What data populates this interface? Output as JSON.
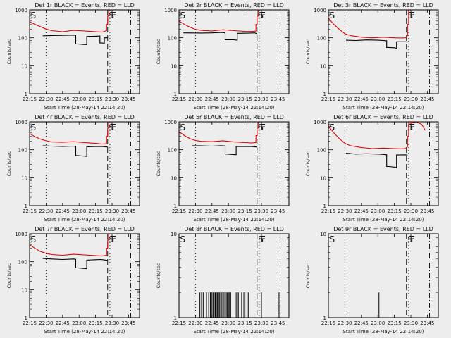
{
  "chart_data": {
    "type": "line",
    "layout": "3x3 grid",
    "x_tick_labels": [
      "22:15",
      "22:30",
      "22:45",
      "23:00",
      "23:15",
      "23:30",
      "23:45"
    ],
    "x_tick_values_min": [
      0,
      15,
      30,
      45,
      60,
      75,
      90
    ],
    "xlim_min": [
      0,
      100
    ],
    "xlabel": "Start Time (28-May-14 22:14:20)",
    "ylabel": "Counts/sec",
    "yscale": "log",
    "colors": {
      "events": "#000000",
      "lld": "#dd0000",
      "background": "#ededed"
    },
    "markers": [
      {
        "label": "S",
        "x": 0,
        "style": "long-dash"
      },
      {
        "label": "",
        "x": 15,
        "style": "dotted"
      },
      {
        "label": "S",
        "x": 71,
        "style": "long-dash"
      },
      {
        "label": "E",
        "x": 73,
        "style": "dotted"
      },
      {
        "label": "",
        "x": 92,
        "style": "dash-dot"
      }
    ],
    "panels": [
      {
        "title": "Det 1r BLACK = Events, RED = LLD",
        "ylim": [
          1,
          1000
        ],
        "y_tick_labels": [
          "1",
          "10",
          "100",
          "1000"
        ],
        "series": [
          {
            "name": "BLACK = Events",
            "color": "#000000",
            "points": [
              [
                12,
                118
              ],
              [
                20,
                120
              ],
              [
                30,
                122
              ],
              [
                40,
                125
              ],
              [
                42,
                123
              ],
              [
                44,
                60
              ],
              [
                48,
                58
              ],
              [
                52,
                57
              ],
              [
                54,
                112
              ],
              [
                60,
                114
              ],
              [
                64,
                116
              ],
              [
                66,
                65
              ],
              [
                68,
                64
              ],
              [
                69,
                100
              ],
              [
                71,
                100
              ]
            ]
          },
          {
            "name": "RED = LLD",
            "color": "#dd0000",
            "points": [
              [
                0,
                380
              ],
              [
                5,
                300
              ],
              [
                10,
                250
              ],
              [
                15,
                205
              ],
              [
                20,
                180
              ],
              [
                30,
                165
              ],
              [
                40,
                185
              ],
              [
                50,
                175
              ],
              [
                60,
                165
              ],
              [
                66,
                160
              ],
              [
                70,
                180
              ],
              [
                71,
                300
              ],
              [
                72,
                600
              ],
              [
                73,
                1000
              ]
            ]
          }
        ]
      },
      {
        "title": "Det 2r BLACK = Events, RED = LLD",
        "ylim": [
          1,
          1000
        ],
        "y_tick_labels": [
          "1",
          "10",
          "100",
          "1000"
        ],
        "series": [
          {
            "name": "BLACK = Events",
            "color": "#000000",
            "points": [
              [
                4,
                150
              ],
              [
                20,
                148
              ],
              [
                30,
                150
              ],
              [
                39,
                155
              ],
              [
                42,
                150
              ],
              [
                44,
                85
              ],
              [
                50,
                85
              ],
              [
                53,
                82
              ],
              [
                55,
                145
              ],
              [
                65,
                148
              ],
              [
                69,
                150
              ],
              [
                71,
                140
              ]
            ]
          },
          {
            "name": "RED = LLD",
            "color": "#dd0000",
            "points": [
              [
                0,
                400
              ],
              [
                5,
                300
              ],
              [
                10,
                240
              ],
              [
                15,
                200
              ],
              [
                20,
                185
              ],
              [
                30,
                175
              ],
              [
                40,
                195
              ],
              [
                50,
                180
              ],
              [
                60,
                170
              ],
              [
                66,
                168
              ],
              [
                70,
                175
              ],
              [
                71,
                300
              ],
              [
                72,
                600
              ],
              [
                73,
                1000
              ]
            ]
          }
        ]
      },
      {
        "title": "Det 3r BLACK = Events, RED = LLD",
        "ylim": [
          1,
          1000
        ],
        "y_tick_labels": [
          "1",
          "10",
          "100",
          "1000"
        ],
        "series": [
          {
            "name": "BLACK = Events",
            "color": "#000000",
            "points": [
              [
                16,
                82
              ],
              [
                25,
                80
              ],
              [
                35,
                84
              ],
              [
                45,
                82
              ],
              [
                50,
                80
              ],
              [
                53,
                78
              ],
              [
                55,
                45
              ],
              [
                60,
                44
              ],
              [
                62,
                42
              ],
              [
                64,
                72
              ],
              [
                70,
                72
              ],
              [
                72,
                70
              ]
            ]
          },
          {
            "name": "RED = LLD",
            "color": "#dd0000",
            "points": [
              [
                0,
                500
              ],
              [
                5,
                300
              ],
              [
                10,
                200
              ],
              [
                15,
                140
              ],
              [
                20,
                120
              ],
              [
                30,
                105
              ],
              [
                40,
                100
              ],
              [
                50,
                105
              ],
              [
                60,
                100
              ],
              [
                66,
                98
              ],
              [
                70,
                100
              ],
              [
                72,
                120
              ],
              [
                73,
                300
              ],
              [
                75,
                1000
              ]
            ]
          }
        ]
      },
      {
        "title": "Det 4r BLACK = Events, RED = LLD",
        "ylim": [
          1,
          1000
        ],
        "y_tick_labels": [
          "1",
          "10",
          "100",
          "1000"
        ],
        "series": [
          {
            "name": "BLACK = Events",
            "color": "#000000",
            "points": [
              [
                12,
                140
              ],
              [
                20,
                135
              ],
              [
                30,
                132
              ],
              [
                40,
                135
              ],
              [
                42,
                132
              ],
              [
                44,
                62
              ],
              [
                48,
                60
              ],
              [
                52,
                58
              ],
              [
                54,
                128
              ],
              [
                60,
                130
              ],
              [
                65,
                132
              ],
              [
                69,
                128
              ],
              [
                71,
                125
              ]
            ]
          },
          {
            "name": "RED = LLD",
            "color": "#dd0000",
            "points": [
              [
                0,
                380
              ],
              [
                5,
                290
              ],
              [
                10,
                240
              ],
              [
                15,
                210
              ],
              [
                20,
                190
              ],
              [
                30,
                185
              ],
              [
                40,
                195
              ],
              [
                50,
                180
              ],
              [
                60,
                170
              ],
              [
                66,
                160
              ],
              [
                70,
                165
              ],
              [
                71,
                300
              ],
              [
                72,
                600
              ],
              [
                73,
                1000
              ]
            ]
          }
        ]
      },
      {
        "title": "Det 5r BLACK = Events, RED = LLD",
        "ylim": [
          1,
          1000
        ],
        "y_tick_labels": [
          "1",
          "10",
          "100",
          "1000"
        ],
        "series": [
          {
            "name": "BLACK = Events",
            "color": "#000000",
            "points": [
              [
                12,
                140
              ],
              [
                20,
                138
              ],
              [
                30,
                135
              ],
              [
                38,
                140
              ],
              [
                42,
                138
              ],
              [
                44,
                70
              ],
              [
                48,
                68
              ],
              [
                52,
                66
              ],
              [
                54,
                130
              ],
              [
                60,
                130
              ],
              [
                65,
                132
              ],
              [
                69,
                128
              ],
              [
                71,
                125
              ]
            ]
          },
          {
            "name": "RED = LLD",
            "color": "#dd0000",
            "points": [
              [
                0,
                450
              ],
              [
                5,
                320
              ],
              [
                10,
                250
              ],
              [
                15,
                215
              ],
              [
                20,
                200
              ],
              [
                30,
                195
              ],
              [
                40,
                210
              ],
              [
                50,
                190
              ],
              [
                60,
                180
              ],
              [
                66,
                175
              ],
              [
                70,
                180
              ],
              [
                71,
                320
              ],
              [
                72,
                600
              ],
              [
                73,
                1000
              ]
            ]
          }
        ]
      },
      {
        "title": "Det 6r BLACK = Events, RED = LLD",
        "ylim": [
          1,
          1000
        ],
        "y_tick_labels": [
          "1",
          "10",
          "100",
          "1000"
        ],
        "series": [
          {
            "name": "BLACK = Events",
            "color": "#000000",
            "points": [
              [
                16,
                75
              ],
              [
                25,
                70
              ],
              [
                35,
                72
              ],
              [
                45,
                70
              ],
              [
                50,
                68
              ],
              [
                53,
                66
              ],
              [
                55,
                25
              ],
              [
                60,
                24
              ],
              [
                62,
                23
              ],
              [
                64,
                65
              ],
              [
                70,
                66
              ],
              [
                72,
                64
              ]
            ]
          },
          {
            "name": "RED = LLD",
            "color": "#dd0000",
            "points": [
              [
                0,
                700
              ],
              [
                5,
                400
              ],
              [
                10,
                250
              ],
              [
                15,
                170
              ],
              [
                20,
                140
              ],
              [
                30,
                120
              ],
              [
                40,
                110
              ],
              [
                50,
                115
              ],
              [
                60,
                110
              ],
              [
                66,
                108
              ],
              [
                70,
                110
              ],
              [
                72,
                130
              ],
              [
                73,
                300
              ],
              [
                75,
                900
              ],
              [
                80,
                1000
              ],
              [
                85,
                800
              ],
              [
                88,
                500
              ]
            ]
          }
        ]
      },
      {
        "title": "Det 7r BLACK = Events, RED = LLD",
        "ylim": [
          1,
          1000
        ],
        "y_tick_labels": [
          "1",
          "10",
          "100",
          "1000"
        ],
        "series": [
          {
            "name": "BLACK = Events",
            "color": "#000000",
            "points": [
              [
                12,
                130
              ],
              [
                20,
                125
              ],
              [
                30,
                120
              ],
              [
                40,
                125
              ],
              [
                42,
                122
              ],
              [
                44,
                60
              ],
              [
                48,
                58
              ],
              [
                52,
                56
              ],
              [
                54,
                115
              ],
              [
                60,
                118
              ],
              [
                65,
                120
              ],
              [
                69,
                115
              ],
              [
                71,
                110
              ]
            ]
          },
          {
            "name": "RED = LLD",
            "color": "#dd0000",
            "points": [
              [
                0,
                400
              ],
              [
                5,
                300
              ],
              [
                10,
                230
              ],
              [
                15,
                200
              ],
              [
                20,
                180
              ],
              [
                30,
                170
              ],
              [
                40,
                185
              ],
              [
                50,
                175
              ],
              [
                60,
                165
              ],
              [
                66,
                160
              ],
              [
                70,
                170
              ],
              [
                71,
                300
              ],
              [
                72,
                600
              ],
              [
                73,
                1000
              ]
            ]
          }
        ]
      },
      {
        "title": "Det 8r BLACK = Events, RED = LLD",
        "ylim": [
          1,
          10
        ],
        "y_tick_labels": [
          "1",
          "10"
        ],
        "series": [
          {
            "name": "BLACK = Events",
            "spikes": true,
            "color": "#000000",
            "spike_x": [
              19,
              20.5,
              22,
              25,
              27,
              28.5,
              30,
              31,
              32,
              33,
              34,
              35,
              36,
              37,
              38,
              39,
              40,
              41,
              42,
              43,
              44,
              45,
              46,
              47,
              52,
              53,
              54,
              57,
              59,
              60,
              63,
              75,
              91
            ],
            "spike_y": 2
          }
        ]
      },
      {
        "title": "Det 9r BLACK = Events, RED = LLD",
        "ylim": [
          1,
          10
        ],
        "y_tick_labels": [
          "1",
          "10"
        ],
        "series": [
          {
            "name": "BLACK = Events",
            "spikes": true,
            "color": "#000000",
            "spike_x": [
              46
            ],
            "spike_y": 2
          }
        ]
      }
    ]
  }
}
